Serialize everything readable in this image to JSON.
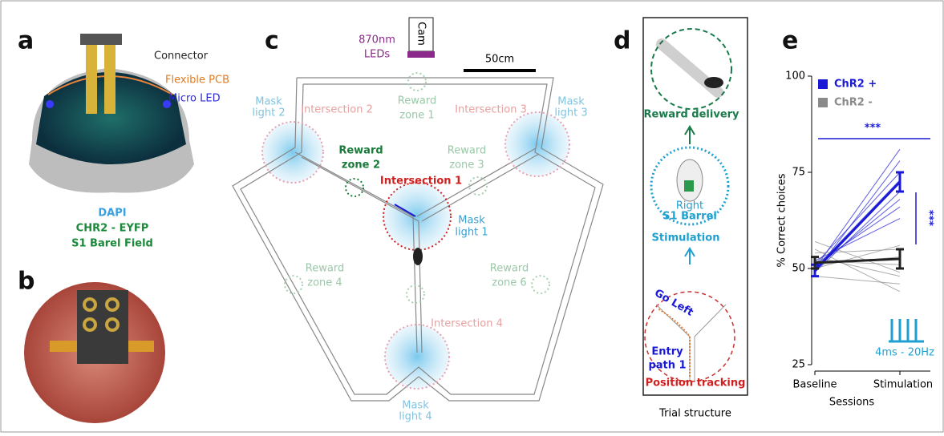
{
  "panels": {
    "a": {
      "letter": "a",
      "connector": "Connector",
      "pcb": "Flexible PCB",
      "led": "Micro LED",
      "stain": [
        "DAPI",
        "CHR2 - EYFP",
        "S1 Barel Field"
      ]
    },
    "b": {
      "letter": "b"
    },
    "c": {
      "letter": "c",
      "camera": "Cam",
      "leds": [
        "870nm",
        "LEDs"
      ],
      "scale": "50cm",
      "labels": [
        {
          "lines": [
            "Mask",
            "light 2"
          ]
        },
        {
          "lines": [
            "Intersection 2"
          ]
        },
        {
          "lines": [
            "Reward",
            "zone 1"
          ]
        },
        {
          "lines": [
            "Intersection 3"
          ]
        },
        {
          "lines": [
            "Mask",
            "light 3"
          ]
        },
        {
          "lines": [
            "Reward",
            "zone 2"
          ]
        },
        {
          "lines": [
            "Reward",
            "zone 3"
          ]
        },
        {
          "lines": [
            "Intersection 1"
          ]
        },
        {
          "lines": [
            "Mask",
            "light 1"
          ]
        },
        {
          "lines": [
            "Reward",
            "zone 4"
          ]
        },
        {
          "lines": [
            "Reward",
            "zone 6"
          ]
        },
        {
          "lines": [
            "Intersection 4"
          ]
        },
        {
          "lines": [
            "Mask",
            "light 4"
          ]
        }
      ]
    },
    "d": {
      "letter": "d",
      "reward": "Reward delivery",
      "barrel": [
        "Right",
        "S1 Barrel"
      ],
      "stim": "Stimulation",
      "go": "Go Left",
      "entry": [
        "Entry",
        "path 1"
      ],
      "tracking": "Position tracking",
      "caption": "Trial structure"
    },
    "e": {
      "letter": "e"
    }
  },
  "chart_data": {
    "type": "line",
    "xlabel": "Sessions",
    "ylabel": "% Correct choices",
    "categories": [
      "Baseline",
      "Stimulation"
    ],
    "ylim": [
      25,
      100
    ],
    "yticks": [
      25,
      50,
      75,
      100
    ],
    "legend": "upper left",
    "annotations": [
      "***",
      "***",
      "4ms - 20Hz"
    ],
    "series": [
      {
        "name": "ChR2 +",
        "color": "#1a1ad6",
        "values": [
          49.5,
          72.5
        ],
        "errors": [
          1.5,
          2.5
        ],
        "individuals": [
          [
            50,
            81
          ],
          [
            49,
            78
          ],
          [
            51,
            75
          ],
          [
            50,
            73
          ],
          [
            49,
            70
          ],
          [
            50,
            68
          ],
          [
            51,
            66
          ],
          [
            52,
            63
          ]
        ]
      },
      {
        "name": "ChR2 -",
        "color": "#8a8a8a",
        "values": [
          51.5,
          52.5
        ],
        "errors": [
          1.5,
          2.5
        ],
        "individuals": [
          [
            57,
            49
          ],
          [
            55,
            44
          ],
          [
            53,
            48
          ],
          [
            52,
            51
          ],
          [
            54,
            55
          ],
          [
            50,
            56
          ],
          [
            51,
            53
          ],
          [
            48,
            46
          ]
        ]
      }
    ]
  }
}
